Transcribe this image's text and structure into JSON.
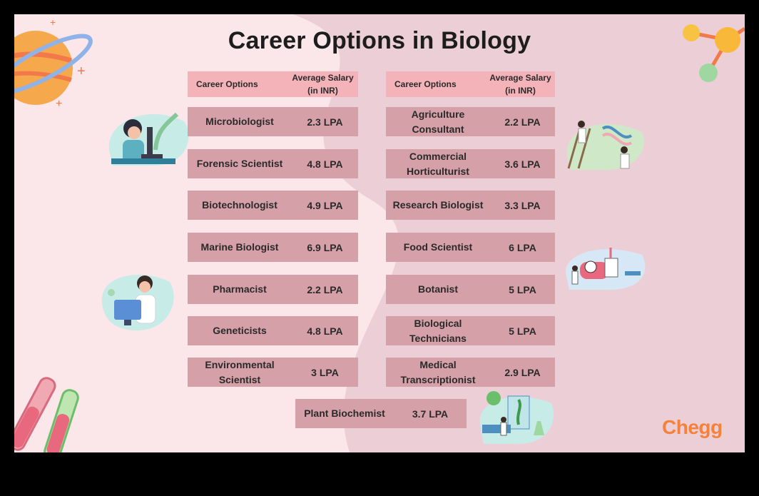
{
  "title": "Career Options in Biology",
  "headers": {
    "career": "Career Options",
    "salary": "Average Salary (in INR)"
  },
  "left": [
    {
      "name": "Microbiologist",
      "salary": "2.3 LPA"
    },
    {
      "name": "Forensic Scientist",
      "salary": "4.8 LPA"
    },
    {
      "name": "Biotechnologist",
      "salary": "4.9 LPA"
    },
    {
      "name": "Marine Biologist",
      "salary": "6.9 LPA"
    },
    {
      "name": "Pharmacist",
      "salary": "2.2 LPA"
    },
    {
      "name": "Geneticists",
      "salary": "4.8 LPA"
    },
    {
      "name": "Environmental Scientist",
      "salary": "3 LPA"
    }
  ],
  "right": [
    {
      "name": "Agriculture Consultant",
      "salary": "2.2 LPA"
    },
    {
      "name": "Commercial Horticulturist",
      "salary": "3.6 LPA"
    },
    {
      "name": "Research Biologist",
      "salary": "3.3 LPA"
    },
    {
      "name": "Food Scientist",
      "salary": "6 LPA"
    },
    {
      "name": "Botanist",
      "salary": "5 LPA"
    },
    {
      "name": "Biological Technicians",
      "salary": "5 LPA"
    },
    {
      "name": "Medical Transcriptionist",
      "salary": "2.9 LPA"
    }
  ],
  "bottom": {
    "name": "Plant Biochemist",
    "salary": "3.7 LPA"
  },
  "brand": "Chegg",
  "colors": {
    "background": "#f7dde3",
    "header": "#f4b3b9",
    "row": "#d6a0a8",
    "brand": "#f5813a"
  }
}
